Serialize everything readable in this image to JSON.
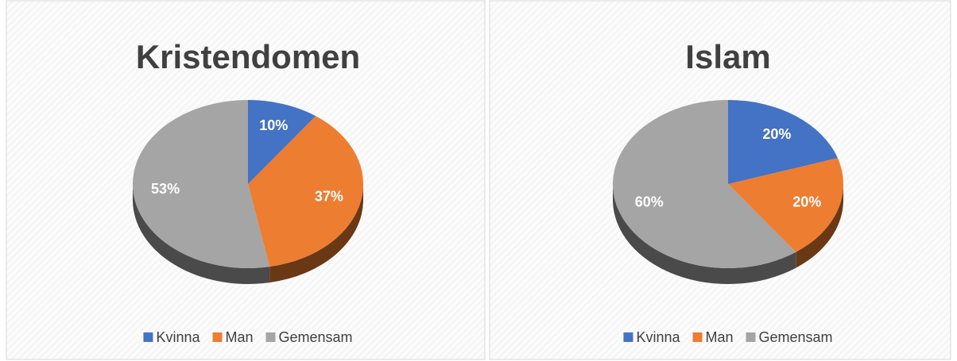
{
  "chart_data": [
    {
      "type": "pie",
      "title": "Kristendomen",
      "categories": [
        "Kvinna",
        "Man",
        "Gemensam"
      ],
      "values": [
        10,
        37,
        53
      ],
      "value_labels": [
        "10%",
        "37%",
        "53%"
      ],
      "colors": [
        "#4472c4",
        "#ed7d31",
        "#a5a5a5"
      ],
      "legend": "bottom"
    },
    {
      "type": "pie",
      "title": "Islam",
      "categories": [
        "Kvinna",
        "Man",
        "Gemensam"
      ],
      "values": [
        20,
        20,
        60
      ],
      "value_labels": [
        "20%",
        "20%",
        "60%"
      ],
      "colors": [
        "#4472c4",
        "#ed7d31",
        "#a5a5a5"
      ],
      "legend": "bottom"
    }
  ]
}
